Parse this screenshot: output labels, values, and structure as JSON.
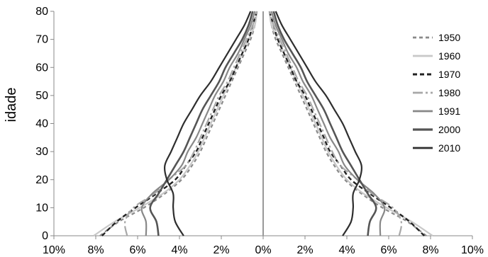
{
  "chart_data": {
    "type": "line",
    "title": "",
    "xlabel": "",
    "ylabel": "idade",
    "xlim": [
      -10,
      10
    ],
    "ylim": [
      0,
      80
    ],
    "x_tick_values": [
      -10,
      -8,
      -6,
      -4,
      -2,
      0,
      2,
      4,
      6,
      8,
      10
    ],
    "x_tick_labels": [
      "10%",
      "8%",
      "6%",
      "4%",
      "2%",
      "0%",
      "2%",
      "4%",
      "6%",
      "8%",
      "10%"
    ],
    "y_ticks": [
      0,
      10,
      20,
      30,
      40,
      50,
      60,
      70,
      80
    ],
    "legend_position": "right",
    "grid": false,
    "ages": [
      0,
      5,
      10,
      15,
      20,
      25,
      30,
      35,
      40,
      45,
      50,
      55,
      60,
      65,
      70,
      75,
      80
    ],
    "series": [
      {
        "name": "1950",
        "color": "#8a8a8a",
        "dash": "5,4",
        "width": 2.2,
        "values": [
          7.8,
          6.9,
          5.7,
          4.7,
          3.9,
          3.4,
          3.0,
          2.7,
          2.4,
          2.1,
          1.8,
          1.5,
          1.2,
          0.9,
          0.6,
          0.4,
          0.3
        ]
      },
      {
        "name": "1960",
        "color": "#c8c8c8",
        "dash": "",
        "width": 2.2,
        "values": [
          8.1,
          7.1,
          5.9,
          4.8,
          4.0,
          3.5,
          3.1,
          2.8,
          2.5,
          2.2,
          1.9,
          1.6,
          1.3,
          1.0,
          0.7,
          0.4,
          0.3
        ]
      },
      {
        "name": "1970",
        "color": "#222222",
        "dash": "6,4",
        "width": 2.4,
        "values": [
          7.7,
          7.0,
          6.1,
          5.1,
          4.2,
          3.7,
          3.2,
          2.9,
          2.6,
          2.3,
          2.0,
          1.6,
          1.3,
          1.0,
          0.7,
          0.5,
          0.3
        ]
      },
      {
        "name": "1980",
        "color": "#a8a8a8",
        "dash": "14,4,3,4",
        "width": 2.2,
        "values": [
          6.5,
          6.6,
          6.2,
          5.2,
          4.5,
          3.7,
          3.3,
          3.0,
          2.7,
          2.4,
          2.1,
          1.7,
          1.4,
          1.1,
          0.8,
          0.5,
          0.3
        ]
      },
      {
        "name": "1991",
        "color": "#888888",
        "dash": "",
        "width": 2.2,
        "values": [
          5.6,
          5.6,
          5.8,
          5.3,
          4.5,
          3.9,
          3.6,
          3.2,
          2.9,
          2.6,
          2.3,
          1.9,
          1.6,
          1.2,
          0.9,
          0.6,
          0.4
        ]
      },
      {
        "name": "2000",
        "color": "#555555",
        "dash": "",
        "width": 2.6,
        "values": [
          5.0,
          5.1,
          5.4,
          5.0,
          4.6,
          4.2,
          3.8,
          3.5,
          3.2,
          2.9,
          2.5,
          2.1,
          1.8,
          1.4,
          1.0,
          0.7,
          0.5
        ]
      },
      {
        "name": "2010",
        "color": "#2e2e2e",
        "dash": "",
        "width": 2.2,
        "values": [
          3.8,
          4.2,
          4.3,
          4.3,
          4.6,
          4.7,
          4.4,
          4.1,
          3.8,
          3.4,
          3.0,
          2.5,
          2.1,
          1.7,
          1.3,
          0.9,
          0.6
        ]
      }
    ]
  }
}
